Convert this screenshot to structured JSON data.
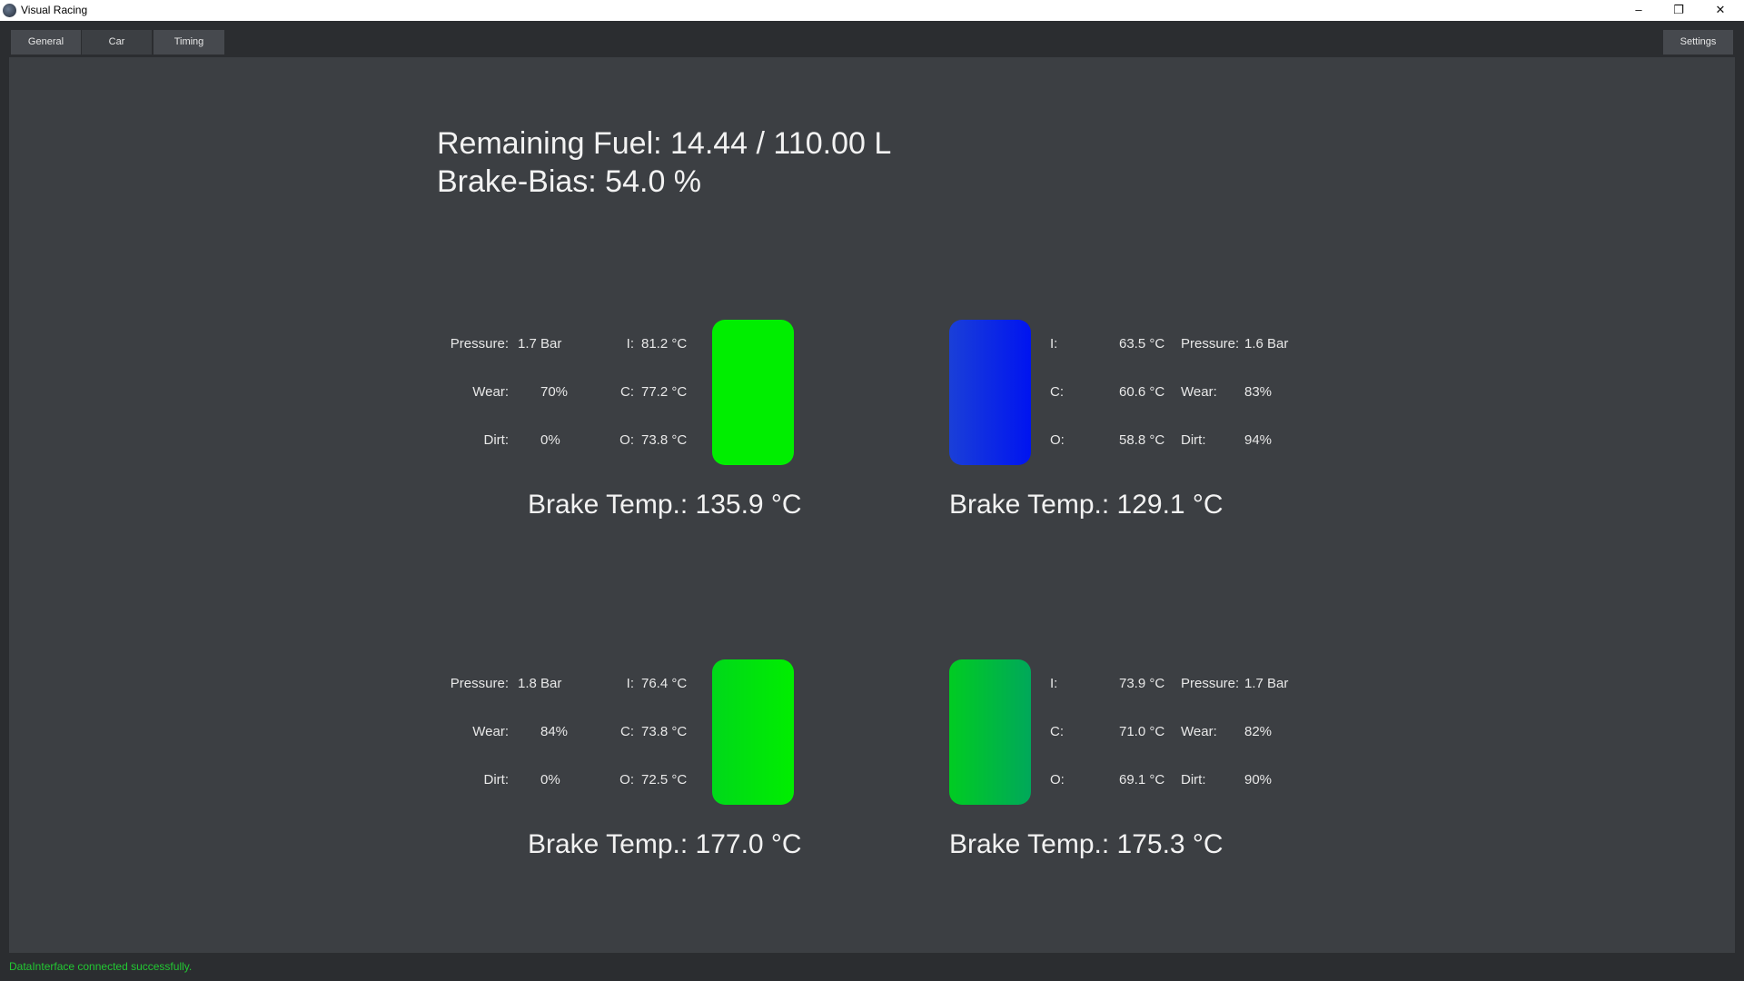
{
  "window": {
    "title": "Visual Racing",
    "minimize": "–",
    "maximize": "❐",
    "close": "✕"
  },
  "tabs": [
    {
      "label": "General"
    },
    {
      "label": "Car"
    },
    {
      "label": "Timing"
    }
  ],
  "settings_label": "Settings",
  "summary": {
    "fuel": "Remaining Fuel: 14.44 / 110.00 L",
    "brake_bias": "Brake-Bias: 54.0 %"
  },
  "labels": {
    "pressure": "Pressure:",
    "wear": "Wear:",
    "dirt": "Dirt:",
    "inner": "I:",
    "center": "C:",
    "outer": "O:"
  },
  "wheels": {
    "front_left": {
      "pressure": "1.7 Bar",
      "wear": "70%",
      "dirt": "0%",
      "temp_i": "81.2 °C",
      "temp_c": "77.2 °C",
      "temp_o": "73.8 °C",
      "brake_temp": "Brake Temp.: 135.9 °C",
      "tire_colors": [
        "#00ee00",
        "#00ee00"
      ]
    },
    "front_right": {
      "pressure": "1.6 Bar",
      "wear": "83%",
      "dirt": "94%",
      "temp_i": "63.5 °C",
      "temp_c": "60.6 °C",
      "temp_o": "58.8 °C",
      "brake_temp": "Brake Temp.: 129.1 °C",
      "tire_colors": [
        "#1a3fd8",
        "#0014f0"
      ]
    },
    "rear_left": {
      "pressure": "1.8 Bar",
      "wear": "84%",
      "dirt": "0%",
      "temp_i": "76.4 °C",
      "temp_c": "73.8 °C",
      "temp_o": "72.5 °C",
      "brake_temp": "Brake Temp.: 177.0 °C",
      "tire_colors": [
        "#00d81a",
        "#00ee00"
      ]
    },
    "rear_right": {
      "pressure": "1.7 Bar",
      "wear": "82%",
      "dirt": "90%",
      "temp_i": "73.9 °C",
      "temp_c": "71.0 °C",
      "temp_o": "69.1 °C",
      "brake_temp": "Brake Temp.: 175.3 °C",
      "tire_colors": [
        "#00cc22",
        "#00a85a"
      ]
    }
  },
  "status": {
    "message": "DataInterface connected successfully."
  }
}
